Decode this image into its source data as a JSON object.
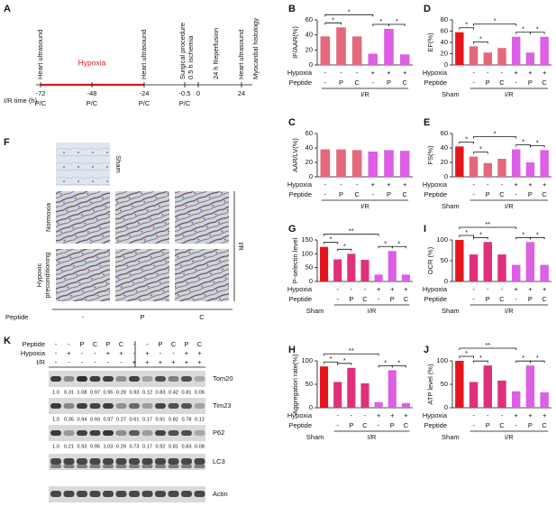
{
  "timeline": {
    "panel": "A",
    "axis_label": "I/R time (h)",
    "ticks": [
      -72,
      -48,
      -24,
      -0.5,
      0,
      24
    ],
    "pc_labels": [
      "P/C",
      "P/C",
      "P/C",
      "P/C"
    ],
    "hypoxia": "Hypoxia",
    "events": [
      "Heart ultrasound",
      "Heart ultrasound",
      "Surgical procedure",
      "0.5 h ischemia",
      "24 h Reperfusion",
      "Heart ultrasound",
      "Myocardial histology"
    ]
  },
  "histology": {
    "panel": "F",
    "sham": "Sham",
    "normoxia": "Normoxia",
    "hypoxic": [
      "Hypoxic",
      "preconditioning"
    ],
    "ir": "I/R",
    "peptide": "Peptide",
    "columns": [
      "-",
      "P",
      "C"
    ]
  },
  "blot": {
    "panel": "K",
    "row_names": [
      "Peptide",
      "Hypoxia",
      "I/R"
    ],
    "rows": [
      [
        "-",
        "-",
        "P",
        "C",
        "P",
        "C",
        "-",
        "-",
        "P",
        "C",
        "P",
        "C"
      ],
      [
        "-",
        "+",
        "-",
        "-",
        "+",
        "+",
        "-",
        "+",
        "-",
        "-",
        "+",
        "+"
      ],
      [
        "-",
        "-",
        "-",
        "-",
        "-",
        "-",
        "+",
        "+",
        "+",
        "+",
        "+",
        "+"
      ]
    ],
    "proteins": [
      {
        "name": "Tom20",
        "values": [
          1.0,
          0.31,
          1.08,
          0.97,
          0.95,
          0.28,
          0.93,
          0.12,
          0.83,
          0.42,
          0.81,
          0.06
        ],
        "value_labels": [
          "1.0",
          "0.31",
          "1.08",
          "0.97",
          "0.95",
          "0.28",
          "0.93",
          "0.12",
          "0.83",
          "0.42",
          "0.81",
          "0.06"
        ]
      },
      {
        "name": "Tim23",
        "values": [
          1.0,
          0.35,
          0.94,
          0.93,
          0.97,
          0.27,
          0.61,
          0.17,
          0.91,
          0.82,
          0.78,
          0.12
        ],
        "value_labels": [
          "1.0",
          "0.35",
          "0.94",
          "0.93",
          "0.97",
          "0.27",
          "0.61",
          "0.17",
          "0.91",
          "0.82",
          "0.78",
          "0.12"
        ]
      },
      {
        "name": "P62",
        "values": [
          1.0,
          0.21,
          0.93,
          0.95,
          1.03,
          0.29,
          0.73,
          0.17,
          0.92,
          0.81,
          0.83,
          0.08
        ],
        "value_labels": [
          "1.0",
          "0.21",
          "0.93",
          "0.95",
          "1.03",
          "0.29",
          "0.73",
          "0.17",
          "0.92",
          "0.81",
          "0.83",
          "0.08"
        ]
      },
      {
        "name": "LC3"
      },
      {
        "name": "Actin"
      }
    ]
  },
  "chart_data": [
    {
      "type": "bar",
      "panel": "B",
      "y_label": "IF/AAR(%)",
      "ylim": [
        0,
        60
      ],
      "yticks": [
        0,
        20,
        40,
        60
      ],
      "values": [
        38,
        50,
        38,
        15,
        48,
        14
      ],
      "colors": [
        "#e4687c",
        "#e4687c",
        "#e4687c",
        "#dc5fe4",
        "#dc5fe4",
        "#dc5fe4"
      ],
      "row_names": [
        "Hypoxia",
        "Peptide"
      ],
      "hypoxia": [
        "-",
        "-",
        "-",
        "+",
        "+",
        "+"
      ],
      "categories": [
        "-",
        "P",
        "C",
        "-",
        "P",
        "C"
      ],
      "groups": [
        {
          "label": "I/R",
          "span": [
            0,
            5
          ]
        }
      ],
      "brackets": [
        {
          "from": 0,
          "to": 1,
          "label": "*"
        },
        {
          "from": 0,
          "to": 3,
          "label": "*"
        },
        {
          "from": 3,
          "to": 4,
          "label": "*"
        },
        {
          "from": 4,
          "to": 5,
          "label": "*"
        }
      ]
    },
    {
      "type": "bar",
      "panel": "C",
      "y_label": "AAR/LV(%)",
      "ylim": [
        0,
        60
      ],
      "yticks": [
        0,
        20,
        40,
        60
      ],
      "values": [
        38,
        38,
        37,
        35,
        37,
        36
      ],
      "colors": [
        "#e4687c",
        "#e4687c",
        "#e4687c",
        "#dc5fe4",
        "#dc5fe4",
        "#dc5fe4"
      ],
      "row_names": [
        "Hypoxia",
        "Peptide"
      ],
      "hypoxia": [
        "-",
        "-",
        "-",
        "+",
        "+",
        "+"
      ],
      "categories": [
        "-",
        "P",
        "C",
        "-",
        "P",
        "C"
      ],
      "groups": [
        {
          "label": "I/R",
          "span": [
            0,
            5
          ]
        }
      ],
      "brackets": []
    },
    {
      "type": "bar",
      "panel": "D",
      "y_label": "EF(%)",
      "ylim": [
        0,
        80
      ],
      "yticks": [
        0,
        20,
        40,
        60,
        80
      ],
      "values": [
        58,
        33,
        22,
        30,
        50,
        22,
        50
      ],
      "colors": [
        "#e4151d",
        "#e4687c",
        "#e4687c",
        "#e4687c",
        "#dc5fe4",
        "#dc5fe4",
        "#dc5fe4"
      ],
      "row_names": [
        "Hypoxia",
        "Peptide"
      ],
      "hypoxia": [
        null,
        "-",
        "-",
        "-",
        "+",
        "+",
        "+"
      ],
      "categories": [
        null,
        "-",
        "P",
        "C",
        "-",
        "P",
        "C"
      ],
      "groups": [
        {
          "label": "Sham",
          "span": [
            0,
            0
          ]
        },
        {
          "label": "I/R",
          "span": [
            1,
            6
          ]
        }
      ],
      "brackets": [
        {
          "from": 0,
          "to": 1,
          "label": "*"
        },
        {
          "from": 1,
          "to": 2,
          "label": "*"
        },
        {
          "from": 1,
          "to": 4,
          "label": "*"
        },
        {
          "from": 4,
          "to": 5,
          "label": "*"
        },
        {
          "from": 5,
          "to": 6,
          "label": "*"
        }
      ]
    },
    {
      "type": "bar",
      "panel": "E",
      "y_label": "FS(%)",
      "ylim": [
        0,
        60
      ],
      "yticks": [
        0,
        20,
        40,
        60
      ],
      "values": [
        42,
        28,
        19,
        25,
        38,
        20,
        37
      ],
      "colors": [
        "#e4151d",
        "#e4687c",
        "#e4687c",
        "#e4687c",
        "#dc5fe4",
        "#dc5fe4",
        "#dc5fe4"
      ],
      "row_names": [
        "Hypoxia",
        "Peptide"
      ],
      "hypoxia": [
        null,
        "-",
        "-",
        "-",
        "+",
        "+",
        "+"
      ],
      "categories": [
        null,
        "-",
        "P",
        "C",
        "-",
        "P",
        "C"
      ],
      "groups": [
        {
          "label": "Sham",
          "span": [
            0,
            0
          ]
        },
        {
          "label": "I/R",
          "span": [
            1,
            6
          ]
        }
      ],
      "brackets": [
        {
          "from": 0,
          "to": 1,
          "label": "*"
        },
        {
          "from": 1,
          "to": 2,
          "label": "*"
        },
        {
          "from": 1,
          "to": 4,
          "label": "*"
        },
        {
          "from": 4,
          "to": 5,
          "label": "*"
        },
        {
          "from": 5,
          "to": 6,
          "label": "*"
        }
      ]
    },
    {
      "type": "bar",
      "panel": "G",
      "y_label": "P-selectin level",
      "ylim": [
        0,
        150
      ],
      "yticks": [
        0,
        50,
        100,
        150
      ],
      "values": [
        125,
        80,
        100,
        78,
        25,
        110,
        25
      ],
      "colors": [
        "#e4151d",
        "#e0307a",
        "#e0307a",
        "#e0307a",
        "#dc5fe4",
        "#dc5fe4",
        "#dc5fe4"
      ],
      "row_names": [
        "Hypoxia",
        "Peptide"
      ],
      "hypoxia": [
        null,
        "-",
        "-",
        "-",
        "+",
        "+",
        "+"
      ],
      "categories": [
        null,
        "-",
        "P",
        "C",
        "-",
        "P",
        "C"
      ],
      "groups": [
        {
          "label": "Sham",
          "span": [
            0,
            0
          ]
        },
        {
          "label": "I/R",
          "span": [
            1,
            6
          ]
        }
      ],
      "brackets": [
        {
          "from": 0,
          "to": 1,
          "label": "*"
        },
        {
          "from": 1,
          "to": 2,
          "label": "*"
        },
        {
          "from": 0,
          "to": 4,
          "label": "**"
        },
        {
          "from": 4,
          "to": 5,
          "label": "*"
        },
        {
          "from": 5,
          "to": 6,
          "label": "*"
        }
      ]
    },
    {
      "type": "bar",
      "panel": "H",
      "y_label": "Aggregation rate(%)",
      "ylim": [
        0,
        100
      ],
      "yticks": [
        0,
        50,
        100
      ],
      "values": [
        88,
        55,
        85,
        52,
        12,
        80,
        10
      ],
      "colors": [
        "#e4151d",
        "#e0307a",
        "#e0307a",
        "#e0307a",
        "#dc5fe4",
        "#dc5fe4",
        "#dc5fe4"
      ],
      "row_names": [
        "Hypoxia",
        "Peptide"
      ],
      "hypoxia": [
        null,
        "-",
        "-",
        "-",
        "+",
        "+",
        "+"
      ],
      "categories": [
        null,
        "-",
        "P",
        "C",
        "-",
        "P",
        "C"
      ],
      "groups": [
        {
          "label": "Sham",
          "span": [
            0,
            0
          ]
        },
        {
          "label": "I/R",
          "span": [
            1,
            6
          ]
        }
      ],
      "brackets": [
        {
          "from": 0,
          "to": 1,
          "label": "*"
        },
        {
          "from": 1,
          "to": 2,
          "label": "*"
        },
        {
          "from": 0,
          "to": 4,
          "label": "**"
        },
        {
          "from": 4,
          "to": 5,
          "label": "*"
        },
        {
          "from": 5,
          "to": 6,
          "label": "*"
        }
      ]
    },
    {
      "type": "bar",
      "panel": "I",
      "y_label": "OCR (%)",
      "ylim": [
        0,
        100
      ],
      "yticks": [
        0,
        50,
        100
      ],
      "values": [
        100,
        65,
        95,
        65,
        40,
        95,
        40
      ],
      "colors": [
        "#e4151d",
        "#e0307a",
        "#e0307a",
        "#e0307a",
        "#dc5fe4",
        "#dc5fe4",
        "#dc5fe4"
      ],
      "row_names": [
        "Hypoxia",
        "Peptide"
      ],
      "hypoxia": [
        null,
        "-",
        "-",
        "-",
        "+",
        "+",
        "+"
      ],
      "categories": [
        null,
        "-",
        "P",
        "C",
        "-",
        "P",
        "C"
      ],
      "groups": [
        {
          "label": "Sham",
          "span": [
            0,
            0
          ]
        },
        {
          "label": "I/R",
          "span": [
            1,
            6
          ]
        }
      ],
      "brackets": [
        {
          "from": 0,
          "to": 1,
          "label": "*"
        },
        {
          "from": 1,
          "to": 2,
          "label": "*"
        },
        {
          "from": 0,
          "to": 4,
          "label": "**"
        },
        {
          "from": 4,
          "to": 5,
          "label": "*"
        },
        {
          "from": 5,
          "to": 6,
          "label": "*"
        }
      ]
    },
    {
      "type": "bar",
      "panel": "J",
      "y_label": "ATP level (%)",
      "ylim": [
        0,
        100
      ],
      "yticks": [
        0,
        50,
        100
      ],
      "values": [
        100,
        55,
        90,
        58,
        35,
        90,
        33
      ],
      "colors": [
        "#e4151d",
        "#e0307a",
        "#e0307a",
        "#e0307a",
        "#dc5fe4",
        "#dc5fe4",
        "#dc5fe4"
      ],
      "row_names": [
        "Hypoxia",
        "Peptide"
      ],
      "hypoxia": [
        null,
        "-",
        "-",
        "-",
        "+",
        "+",
        "+"
      ],
      "categories": [
        null,
        "-",
        "P",
        "C",
        "-",
        "P",
        "C"
      ],
      "groups": [
        {
          "label": "Sham",
          "span": [
            0,
            0
          ]
        },
        {
          "label": "I/R",
          "span": [
            1,
            6
          ]
        }
      ],
      "brackets": [
        {
          "from": 0,
          "to": 1,
          "label": "*"
        },
        {
          "from": 1,
          "to": 2,
          "label": "*"
        },
        {
          "from": 0,
          "to": 4,
          "label": "**"
        },
        {
          "from": 4,
          "to": 5,
          "label": "*"
        },
        {
          "from": 5,
          "to": 6,
          "label": "*"
        }
      ]
    }
  ]
}
